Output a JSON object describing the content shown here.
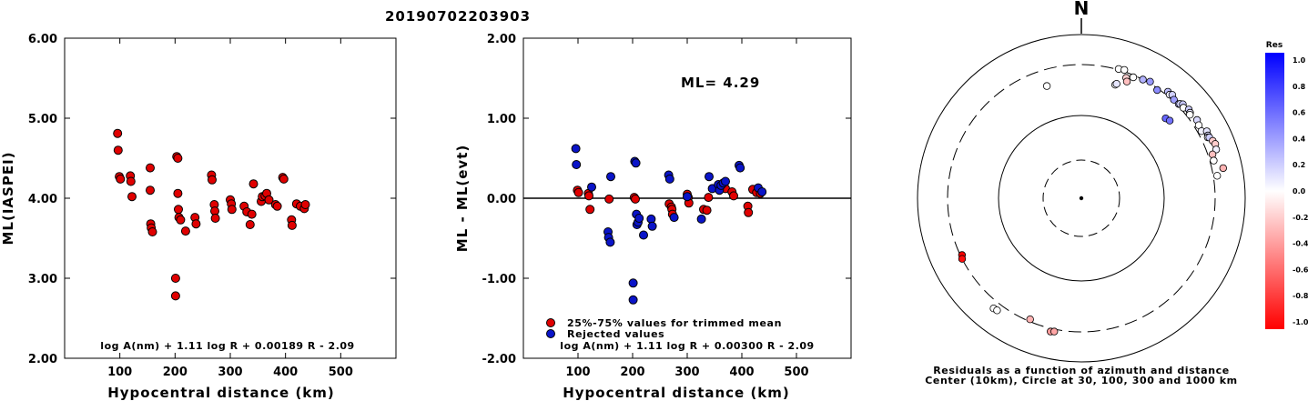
{
  "title": "20190702203903",
  "colors": {
    "red": "#e00000",
    "blue": "#0a14c8",
    "axis": "#000000"
  },
  "chart_data": [
    {
      "type": "scatter",
      "xlabel": "Hypocentral distance (km)",
      "ylabel": "ML(IASPEI)",
      "xlim": [
        0,
        600
      ],
      "ylim": [
        2.0,
        6.0
      ],
      "x_ticks": [
        "100",
        "200",
        "300",
        "400",
        "500"
      ],
      "y_ticks": [
        "2.00",
        "3.00",
        "4.00",
        "5.00",
        "6.00"
      ],
      "formula": "log A(nm) + 1.11 log R + 0.00189 R - 2.09",
      "series": [
        {
          "color": "red",
          "x": [
            96,
            97,
            99,
            101,
            119,
            120,
            122,
            155,
            155,
            156,
            157,
            159,
            201,
            201,
            203,
            205,
            205,
            206,
            207,
            210,
            219,
            236,
            238,
            266,
            267,
            271,
            272,
            273,
            300,
            302,
            303,
            325,
            330,
            336,
            339,
            342,
            356,
            358,
            363,
            366,
            370,
            382,
            385,
            395,
            397,
            411,
            412,
            420,
            427,
            434,
            436
          ],
          "y": [
            4.81,
            4.6,
            4.27,
            4.24,
            4.28,
            4.21,
            4.02,
            4.38,
            4.1,
            3.68,
            3.63,
            3.58,
            3.0,
            2.78,
            4.52,
            4.5,
            4.06,
            3.86,
            3.76,
            3.73,
            3.59,
            3.76,
            3.68,
            4.29,
            4.23,
            3.92,
            3.84,
            3.75,
            3.98,
            3.93,
            3.86,
            3.9,
            3.83,
            3.67,
            3.8,
            4.18,
            3.96,
            4.02,
            4.03,
            4.06,
            3.98,
            3.92,
            3.9,
            4.26,
            4.24,
            3.73,
            3.66,
            3.93,
            3.9,
            3.87,
            3.92
          ]
        }
      ]
    },
    {
      "type": "scatter",
      "xlabel": "Hypocentral distance (km)",
      "ylabel": "ML - ML(evt)",
      "xlim": [
        0,
        600
      ],
      "ylim": [
        -2.0,
        2.0
      ],
      "x_ticks": [
        "100",
        "200",
        "300",
        "400",
        "500"
      ],
      "y_ticks": [
        "-2.00",
        "-1.00",
        "0.00",
        "1.00",
        "2.00"
      ],
      "annotation": "ML= 4.29",
      "zero_line": 0.0,
      "formula": "log A(nm) + 1.11 log R + 0.00300 R - 2.09",
      "legend": [
        "25%-75% values for trimmed mean",
        "Rejected values"
      ],
      "series": [
        {
          "name": "25%-75% values for trimmed mean",
          "color": "red",
          "x": [
            99,
            101,
            119,
            120,
            122,
            157,
            203,
            205,
            267,
            271,
            272,
            273,
            300,
            302,
            303,
            330,
            336,
            339,
            370,
            382,
            385,
            411,
            412,
            420,
            427,
            434
          ],
          "y": [
            0.1,
            0.07,
            0.06,
            0.03,
            -0.14,
            -0.01,
            0.01,
            -0.01,
            -0.07,
            -0.11,
            -0.14,
            -0.2,
            0.05,
            0.01,
            -0.06,
            -0.14,
            -0.15,
            0.01,
            0.12,
            0.08,
            0.03,
            -0.1,
            -0.18,
            0.11,
            0.07,
            0.06
          ]
        },
        {
          "name": "Rejected values",
          "color": "blue",
          "x": [
            96,
            97,
            125,
            155,
            156,
            159,
            160,
            201,
            201,
            204,
            206,
            207,
            208,
            210,
            212,
            220,
            234,
            236,
            266,
            268,
            276,
            300,
            326,
            340,
            346,
            357,
            359,
            362,
            366,
            370,
            395,
            397,
            430,
            437
          ],
          "y": [
            0.62,
            0.42,
            0.14,
            -0.42,
            -0.49,
            -0.55,
            0.27,
            -1.06,
            -1.27,
            0.46,
            0.44,
            -0.2,
            -0.33,
            -0.3,
            -0.25,
            -0.46,
            -0.26,
            -0.35,
            0.29,
            0.24,
            -0.24,
            0.02,
            -0.26,
            0.27,
            0.12,
            0.17,
            0.1,
            0.16,
            0.19,
            0.21,
            0.41,
            0.38,
            0.13,
            0.08
          ]
        }
      ]
    },
    {
      "type": "scatter",
      "polar": true,
      "north_label": "N",
      "caption": [
        "Residuals as a function of azimuth and distance",
        "Center (10km), Circle at 30, 100, 300 and 1000 km"
      ],
      "rings_km": [
        30,
        100,
        300,
        1000
      ],
      "colorbar": {
        "title": "Res",
        "ticks": [
          "1.0",
          "0.8",
          "0.6",
          "0.4",
          "0.2",
          "0.0",
          "-0.2",
          "-0.4",
          "-0.6",
          "-0.8",
          "-1.0"
        ],
        "range": [
          -1.0,
          1.0
        ]
      },
      "points": [
        {
          "az": 16.1,
          "dist_km": 310,
          "res": 0.0
        },
        {
          "az": 18.5,
          "dist_km": 320,
          "res": 0.0
        },
        {
          "az": 20.4,
          "dist_km": 268,
          "res": -0.18
        },
        {
          "az": 21.3,
          "dist_km": 250,
          "res": -0.25
        },
        {
          "az": 23.2,
          "dist_km": 287,
          "res": 0.0
        },
        {
          "az": 27.4,
          "dist_km": 300,
          "res": 0.3
        },
        {
          "az": 30.5,
          "dist_km": 320,
          "res": 0.4
        },
        {
          "az": 35.0,
          "dist_km": 290,
          "res": 0.45
        },
        {
          "az": 39.1,
          "dist_km": 345,
          "res": 0.25
        },
        {
          "az": 40.4,
          "dist_km": 330,
          "res": 0.05
        },
        {
          "az": 41.3,
          "dist_km": 351,
          "res": 0.18
        },
        {
          "az": 43.2,
          "dist_km": 317,
          "res": 0.38
        },
        {
          "az": 45.9,
          "dist_km": 322,
          "res": 0.3
        },
        {
          "az": 46.3,
          "dist_km": 336,
          "res": 0.15
        },
        {
          "az": 47.2,
          "dist_km": 360,
          "res": 0.22
        },
        {
          "az": 48.4,
          "dist_km": 333,
          "res": 0.0
        },
        {
          "az": 50.4,
          "dist_km": 375,
          "res": 0.2
        },
        {
          "az": 51.8,
          "dist_km": 360,
          "res": 0.1
        },
        {
          "az": 52.4,
          "dist_km": 340,
          "res": 0.0
        },
        {
          "az": 55.9,
          "dist_km": 380,
          "res": 0.15
        },
        {
          "az": 58.1,
          "dist_km": 360,
          "res": 0.0
        },
        {
          "az": 60.8,
          "dist_km": 350,
          "res": 0.05
        },
        {
          "az": 61.9,
          "dist_km": 420,
          "res": 0.1
        },
        {
          "az": 63.6,
          "dist_km": 405,
          "res": 0.15
        },
        {
          "az": 64.3,
          "dist_km": 390,
          "res": 0.05
        },
        {
          "az": 64.6,
          "dist_km": 412,
          "res": 0.2
        },
        {
          "az": 66.4,
          "dist_km": 440,
          "res": -0.2
        },
        {
          "az": 67.9,
          "dist_km": 460,
          "res": -0.2
        },
        {
          "az": 70.1,
          "dist_km": 440,
          "res": 0.05
        },
        {
          "az": 71.5,
          "dist_km": 360,
          "res": -0.25
        },
        {
          "az": 74.1,
          "dist_km": 350,
          "res": 0.0
        },
        {
          "az": 78.0,
          "dist_km": 470,
          "res": -0.3
        },
        {
          "az": 80.6,
          "dist_km": 350,
          "res": 0.0
        },
        {
          "az": 46.5,
          "dist_km": 205,
          "res": 0.6
        },
        {
          "az": 48.7,
          "dist_km": 212,
          "res": 0.55
        },
        {
          "az": 16.6,
          "dist_km": 216,
          "res": 0.0
        },
        {
          "az": 17.1,
          "dist_km": 222,
          "res": 0.1
        },
        {
          "az": 342.9,
          "dist_km": 211,
          "res": 0.0
        },
        {
          "az": 244.5,
          "dist_km": 290,
          "res": -1.0
        },
        {
          "az": 243.0,
          "dist_km": 300,
          "res": -0.95
        },
        {
          "az": 193.0,
          "dist_km": 340,
          "res": -0.4
        },
        {
          "az": 191.5,
          "dist_km": 330,
          "res": -0.35
        },
        {
          "az": 202.9,
          "dist_km": 286,
          "res": -0.3
        },
        {
          "az": 218.5,
          "dist_km": 400,
          "res": 0.0
        },
        {
          "az": 216.9,
          "dist_km": 390,
          "res": 0.0
        }
      ]
    }
  ]
}
